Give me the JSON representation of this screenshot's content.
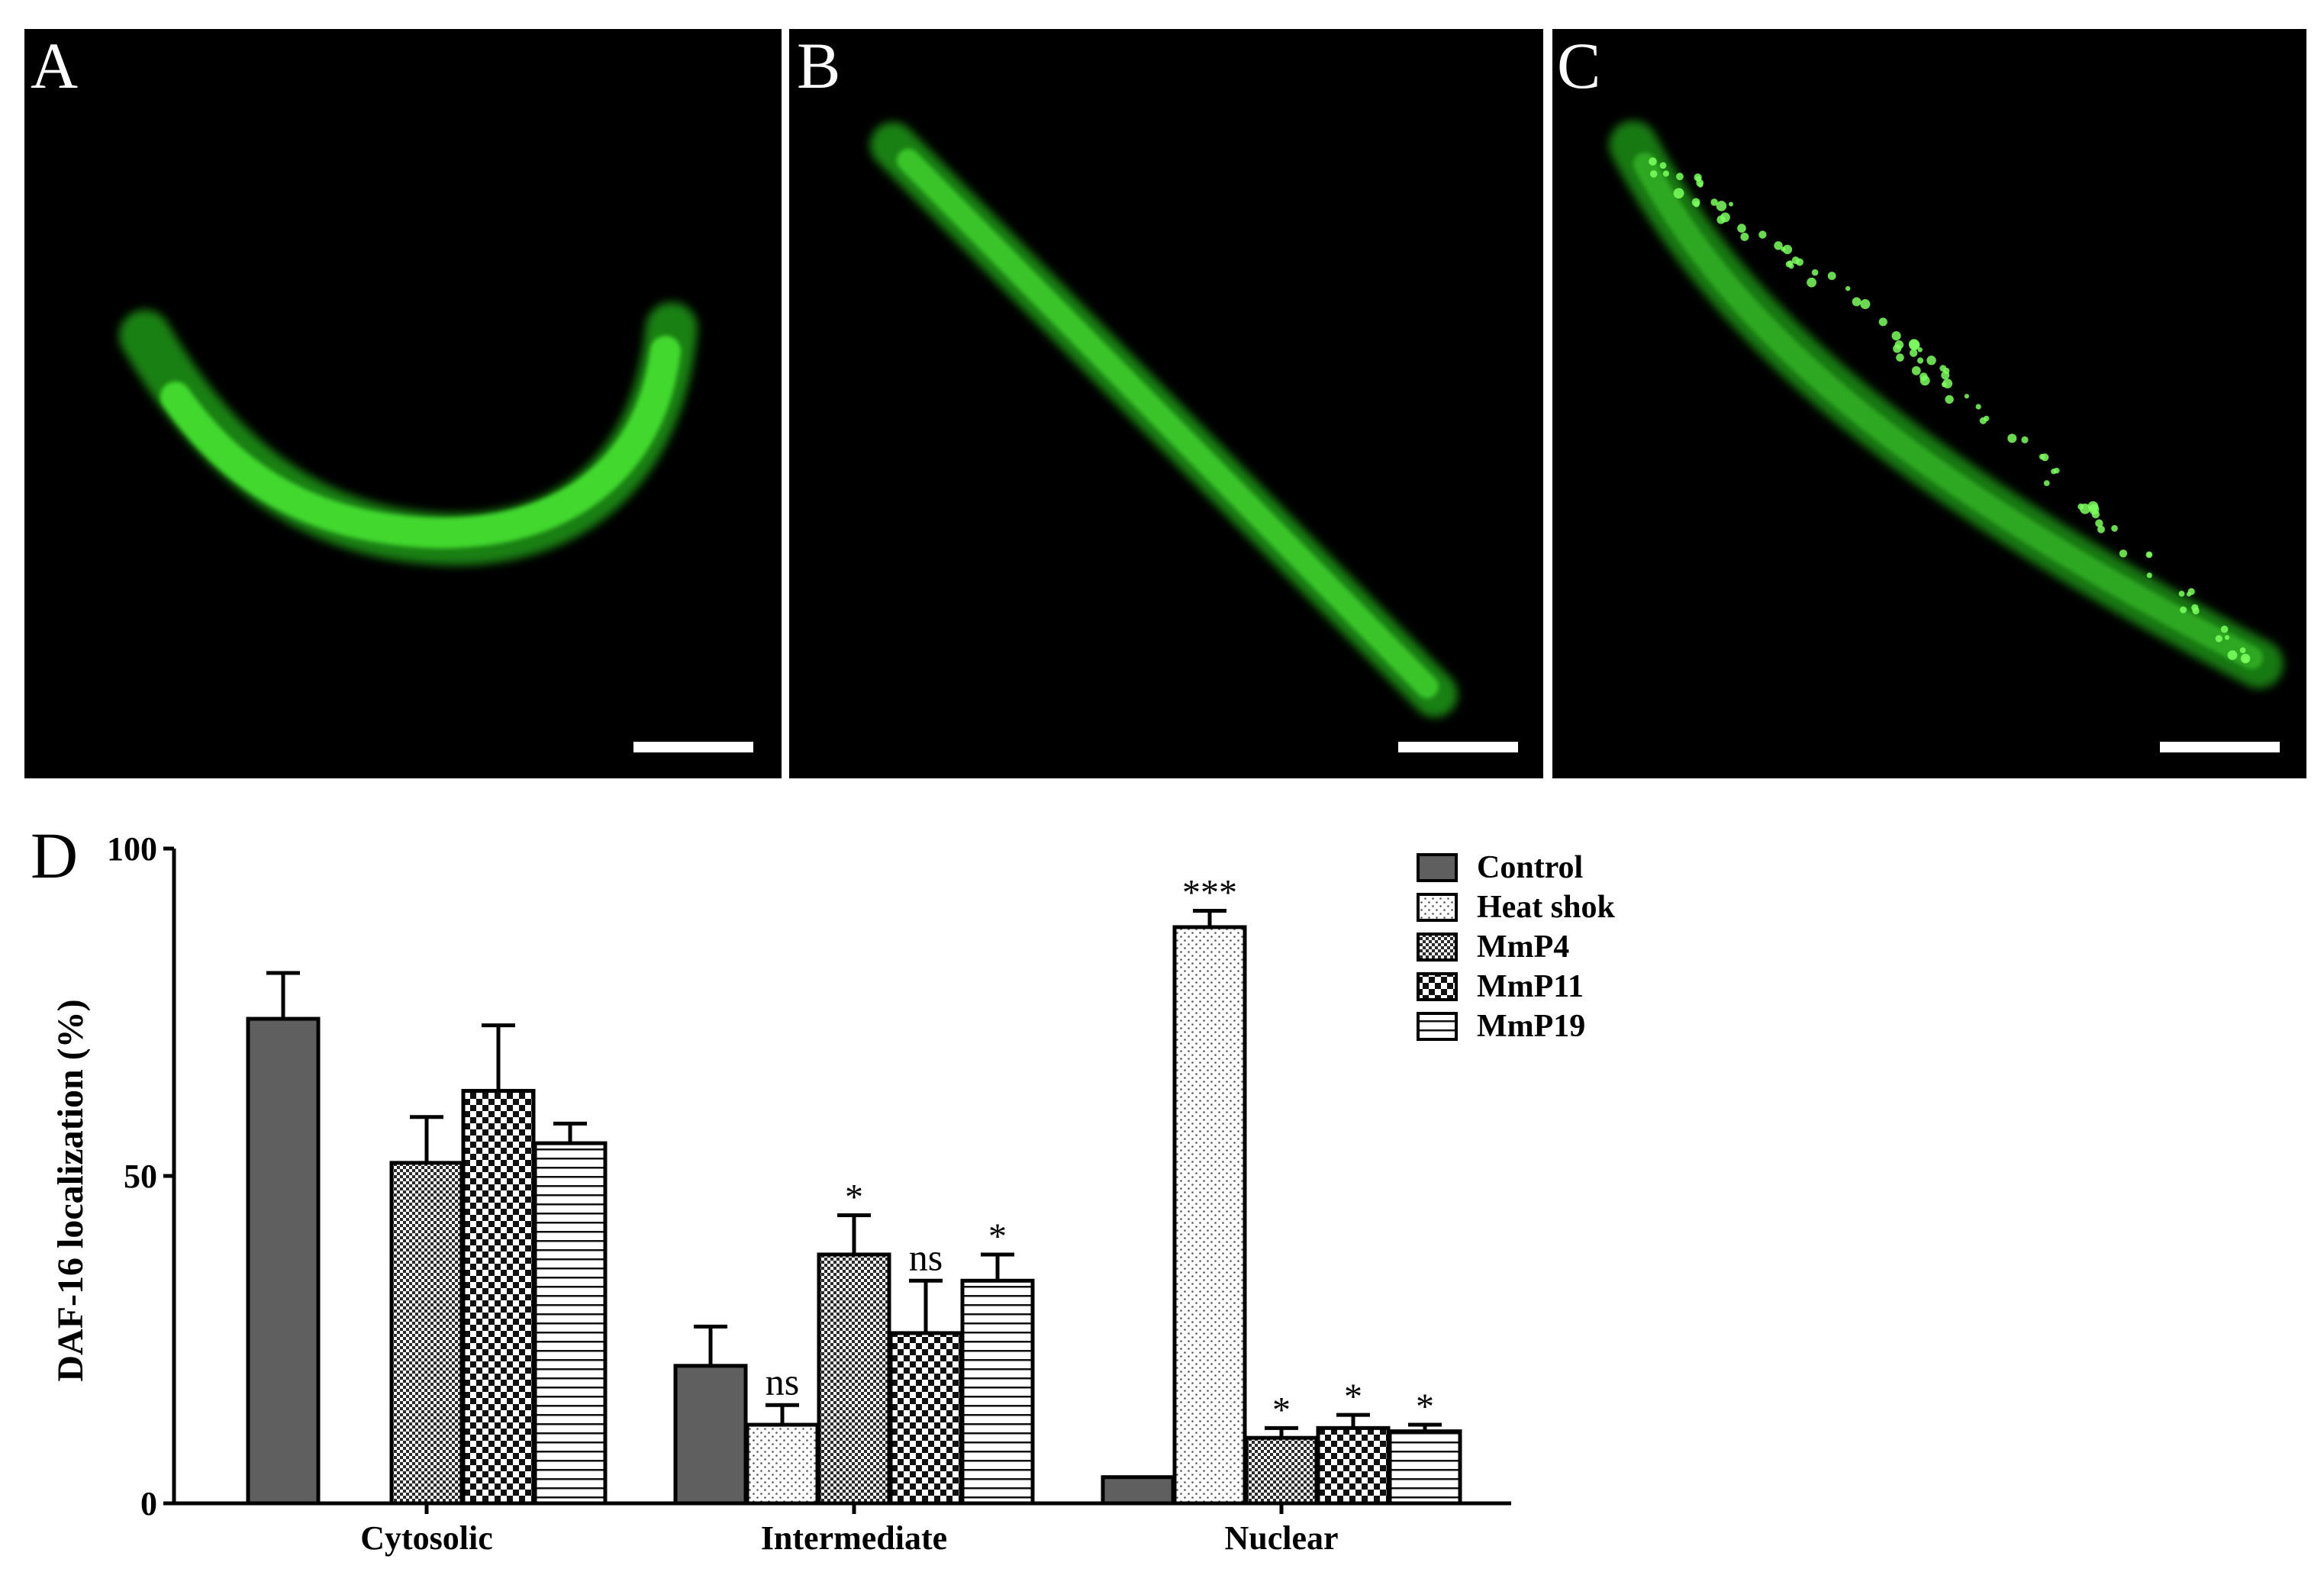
{
  "panels": {
    "a": {
      "letter": "A"
    },
    "b": {
      "letter": "B"
    },
    "c": {
      "letter": "C"
    },
    "d": {
      "letter": "D"
    }
  },
  "colors": {
    "panel_background": "#000000",
    "worm_green": "#33cc22",
    "worm_green_bright": "#5df04a",
    "scale_bar": "#ffffff",
    "control_bar": "#5f5f5f",
    "axis": "#000000"
  },
  "significance": {
    "intermediate": [
      "ns",
      "*",
      "ns",
      "*"
    ],
    "nuclear": [
      "***",
      "*",
      "*",
      "*"
    ]
  },
  "chart_data": {
    "type": "bar",
    "title": "",
    "xlabel": "",
    "ylabel": "DAF-16 localization (%)",
    "ylim": [
      0,
      100
    ],
    "yticks": [
      0,
      50,
      100
    ],
    "categories": [
      "Cytosolic",
      "Intermediate",
      "Nuclear"
    ],
    "legend_position": "top-right",
    "grid": false,
    "series": [
      {
        "name": "Control",
        "pattern": "solid-gray",
        "values": [
          74,
          21,
          4
        ],
        "errors": [
          7,
          6,
          0.5
        ]
      },
      {
        "name": "Heat shok",
        "pattern": "dots",
        "values": [
          0,
          12,
          88
        ],
        "errors": [
          0,
          3,
          2.5
        ]
      },
      {
        "name": "MmP4",
        "pattern": "fine-checker",
        "values": [
          52,
          38,
          10
        ],
        "errors": [
          7,
          6,
          1.5
        ]
      },
      {
        "name": "MmP11",
        "pattern": "coarse-checker",
        "values": [
          63,
          26,
          11.5
        ],
        "errors": [
          10,
          8,
          2
        ]
      },
      {
        "name": "MmP19",
        "pattern": "horizontal-lines",
        "values": [
          55,
          34,
          11
        ],
        "errors": [
          3,
          4,
          1
        ]
      }
    ]
  }
}
